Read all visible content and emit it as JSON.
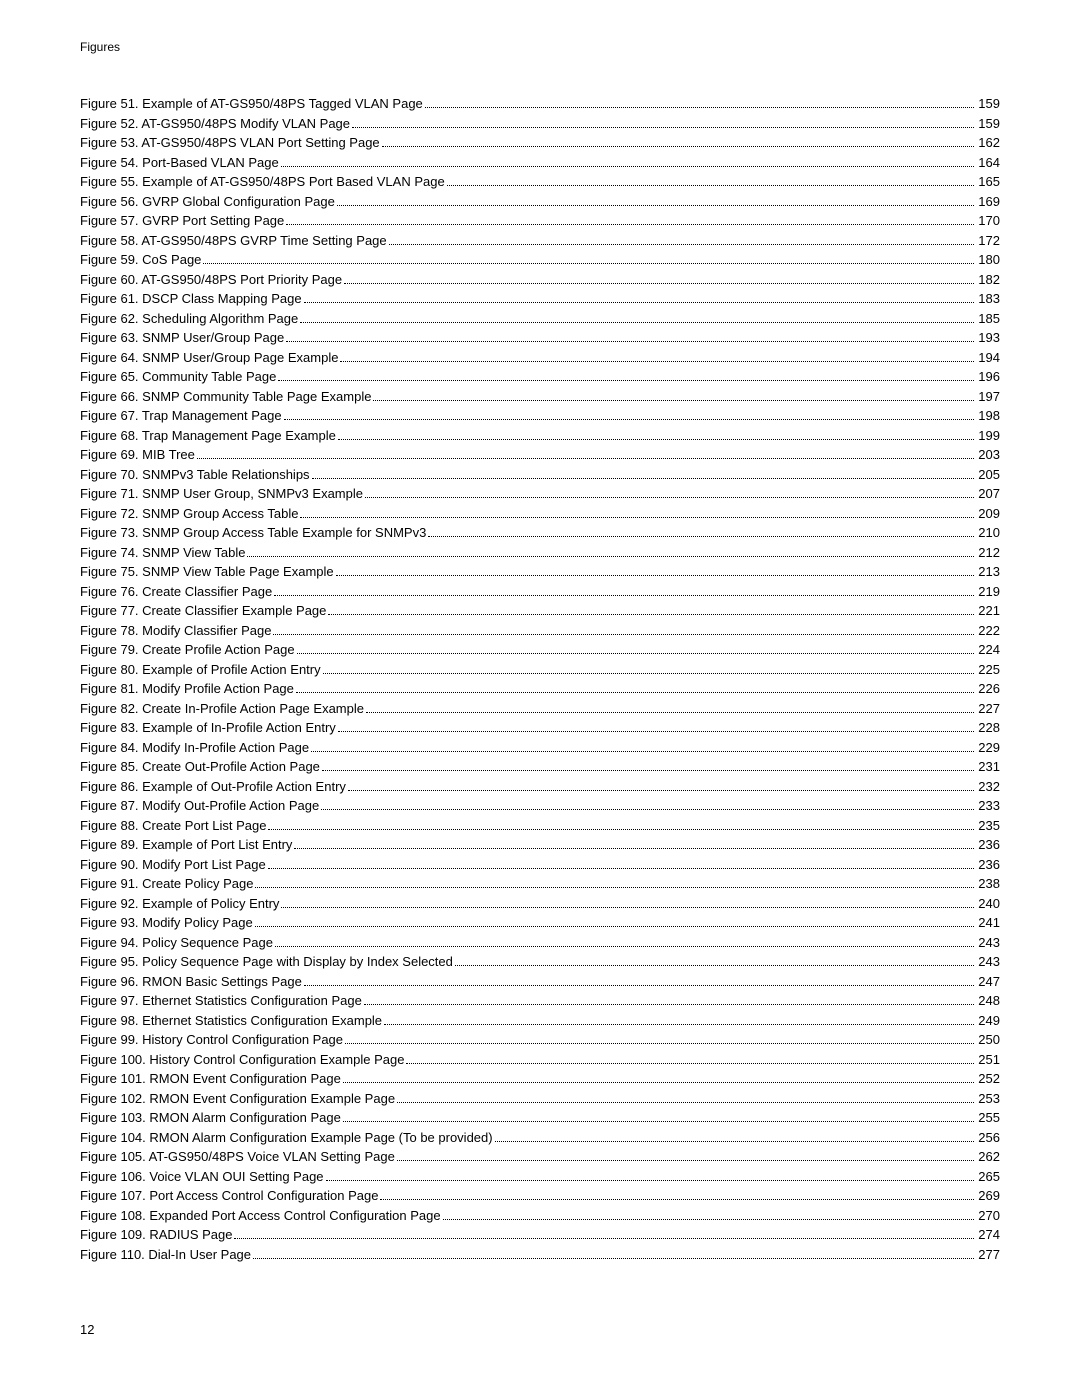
{
  "header": "Figures",
  "footer": "12",
  "entries": [
    {
      "label": "Figure 51.  Example of AT-GS950/48PS Tagged VLAN Page",
      "page": "159"
    },
    {
      "label": "Figure 52.  AT-GS950/48PS Modify VLAN Page",
      "page": "159"
    },
    {
      "label": "Figure 53.  AT-GS950/48PS VLAN Port Setting Page",
      "page": "162"
    },
    {
      "label": "Figure 54.  Port-Based VLAN Page",
      "page": "164"
    },
    {
      "label": "Figure 55.  Example of AT-GS950/48PS Port Based VLAN Page",
      "page": "165"
    },
    {
      "label": "Figure 56.  GVRP Global Configuration Page",
      "page": "169"
    },
    {
      "label": "Figure 57.  GVRP Port Setting Page",
      "page": "170"
    },
    {
      "label": "Figure 58.  AT-GS950/48PS GVRP Time Setting Page",
      "page": "172"
    },
    {
      "label": "Figure 59.  CoS Page",
      "page": "180"
    },
    {
      "label": "Figure 60.  AT-GS950/48PS Port Priority Page",
      "page": "182"
    },
    {
      "label": "Figure 61.  DSCP Class Mapping Page",
      "page": "183"
    },
    {
      "label": "Figure 62.  Scheduling Algorithm Page",
      "page": "185"
    },
    {
      "label": "Figure 63.  SNMP User/Group Page",
      "page": "193"
    },
    {
      "label": "Figure 64.  SNMP User/Group Page Example",
      "page": "194"
    },
    {
      "label": "Figure 65.  Community Table Page",
      "page": "196"
    },
    {
      "label": "Figure 66.  SNMP Community Table Page Example",
      "page": "197"
    },
    {
      "label": "Figure 67.  Trap Management Page",
      "page": "198"
    },
    {
      "label": "Figure 68.  Trap Management Page Example",
      "page": "199"
    },
    {
      "label": "Figure 69.  MIB Tree",
      "page": "203"
    },
    {
      "label": "Figure 70.  SNMPv3 Table Relationships",
      "page": "205"
    },
    {
      "label": "Figure 71.  SNMP User Group, SNMPv3 Example",
      "page": "207"
    },
    {
      "label": "Figure 72.  SNMP Group Access Table",
      "page": "209"
    },
    {
      "label": "Figure 73.  SNMP Group Access Table Example for SNMPv3",
      "page": "210"
    },
    {
      "label": "Figure 74.  SNMP View Table",
      "page": "212"
    },
    {
      "label": "Figure 75.  SNMP View Table Page Example",
      "page": "213"
    },
    {
      "label": "Figure 76.  Create Classifier Page",
      "page": "219"
    },
    {
      "label": "Figure 77.  Create Classifier Example Page",
      "page": "221"
    },
    {
      "label": "Figure 78.  Modify Classifier Page",
      "page": "222"
    },
    {
      "label": "Figure 79.  Create Profile Action Page",
      "page": "224"
    },
    {
      "label": "Figure 80.  Example of Profile Action Entry",
      "page": "225"
    },
    {
      "label": "Figure 81.  Modify Profile Action Page",
      "page": "226"
    },
    {
      "label": "Figure 82.  Create In-Profile Action Page Example",
      "page": "227"
    },
    {
      "label": "Figure 83.  Example of In-Profile Action Entry",
      "page": "228"
    },
    {
      "label": "Figure 84.  Modify In-Profile Action Page",
      "page": "229"
    },
    {
      "label": "Figure 85.  Create Out-Profile Action Page",
      "page": "231"
    },
    {
      "label": "Figure 86.  Example of Out-Profile Action Entry",
      "page": "232"
    },
    {
      "label": "Figure 87.  Modify Out-Profile Action Page",
      "page": "233"
    },
    {
      "label": "Figure 88.  Create Port List Page",
      "page": "235"
    },
    {
      "label": "Figure 89.  Example of Port List Entry",
      "page": "236"
    },
    {
      "label": "Figure 90.  Modify Port List Page",
      "page": "236"
    },
    {
      "label": "Figure 91.  Create Policy Page",
      "page": "238"
    },
    {
      "label": "Figure 92.  Example of Policy Entry",
      "page": "240"
    },
    {
      "label": "Figure 93.  Modify Policy Page",
      "page": "241"
    },
    {
      "label": "Figure 94.  Policy Sequence Page",
      "page": "243"
    },
    {
      "label": "Figure 95.  Policy Sequence Page with Display by Index Selected",
      "page": "243"
    },
    {
      "label": "Figure 96.  RMON Basic Settings Page",
      "page": "247"
    },
    {
      "label": "Figure 97.  Ethernet Statistics Configuration Page",
      "page": "248"
    },
    {
      "label": "Figure 98.  Ethernet Statistics Configuration Example",
      "page": "249"
    },
    {
      "label": "Figure 99.  History Control Configuration Page",
      "page": "250"
    },
    {
      "label": "Figure 100.  History Control Configuration Example Page",
      "page": "251"
    },
    {
      "label": "Figure 101.  RMON Event Configuration Page",
      "page": "252"
    },
    {
      "label": "Figure 102.  RMON Event Configuration Example Page",
      "page": "253"
    },
    {
      "label": "Figure 103.  RMON Alarm Configuration Page",
      "page": "255"
    },
    {
      "label": "Figure 104.  RMON Alarm Configuration Example Page (To be provided)",
      "page": "256"
    },
    {
      "label": "Figure 105.  AT-GS950/48PS Voice VLAN Setting Page",
      "page": "262"
    },
    {
      "label": "Figure 106.  Voice VLAN OUI Setting Page",
      "page": "265"
    },
    {
      "label": "Figure 107.  Port Access Control Configuration Page",
      "page": "269"
    },
    {
      "label": "Figure 108.  Expanded Port Access Control Configuration Page",
      "page": "270"
    },
    {
      "label": "Figure 109.  RADIUS Page",
      "page": "274"
    },
    {
      "label": "Figure 110.  Dial-In User Page",
      "page": "277"
    }
  ]
}
